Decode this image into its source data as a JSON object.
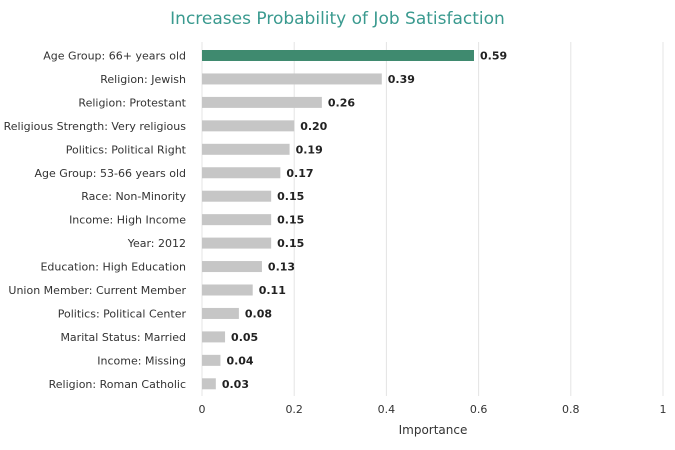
{
  "chart_data": {
    "type": "bar",
    "orientation": "horizontal",
    "title": "Increases Probability of Job Satisfaction",
    "xlabel": "Importance",
    "ylabel": "",
    "xlim": [
      0,
      1
    ],
    "x_ticks": [
      "0",
      "0.2",
      "0.4",
      "0.6",
      "0.8",
      "1"
    ],
    "grid": true,
    "categories": [
      "Age Group: 66+ years old",
      "Religion: Jewish",
      "Religion: Protestant",
      "Religious Strength: Very religious",
      "Politics: Political Right",
      "Age Group: 53-66 years old",
      "Race: Non-Minority",
      "Income: High Income",
      "Year: 2012",
      "Education: High Education",
      "Union Member: Current Member",
      "Politics: Political Center",
      "Marital Status: Married",
      "Income: Missing",
      "Religion: Roman Catholic"
    ],
    "values": [
      0.59,
      0.39,
      0.26,
      0.2,
      0.19,
      0.17,
      0.15,
      0.15,
      0.15,
      0.13,
      0.11,
      0.08,
      0.05,
      0.04,
      0.03
    ],
    "value_labels": [
      "0.59",
      "0.39",
      "0.26",
      "0.20",
      "0.19",
      "0.17",
      "0.15",
      "0.15",
      "0.15",
      "0.13",
      "0.11",
      "0.08",
      "0.05",
      "0.04",
      "0.03"
    ],
    "colors": {
      "highlight": "#3f8a6f",
      "bar": "#c6c6c6",
      "title": "#3a9a8f",
      "grid": "#e4e4e4"
    }
  }
}
